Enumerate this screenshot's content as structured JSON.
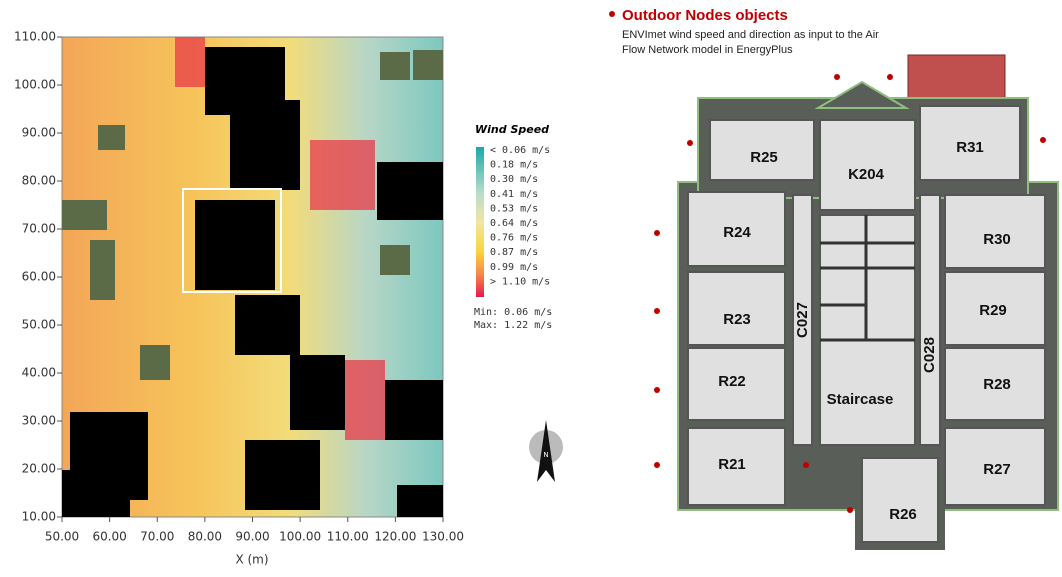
{
  "map": {
    "y_ticks": [
      "110.00",
      "100.00",
      "90.00",
      "80.00",
      "70.00",
      "60.00",
      "50.00",
      "40.00",
      "30.00",
      "20.00",
      "10.00"
    ],
    "x_ticks": [
      "50.00",
      "60.00",
      "70.00",
      "80.00",
      "90.00",
      "100.00",
      "110.00",
      "120.00",
      "130.00"
    ],
    "x_label": "X (m)"
  },
  "legend": {
    "title": "Wind Speed",
    "labels": [
      "< 0.06 m/s",
      "0.18 m/s",
      "0.30 m/s",
      "0.41 m/s",
      "0.53 m/s",
      "0.64 m/s",
      "0.76 m/s",
      "0.87 m/s",
      "0.99 m/s",
      "> 1.10 m/s"
    ],
    "min": "Min: 0.06 m/s",
    "max": "Max: 1.22 m/s"
  },
  "north": "N",
  "plan": {
    "title": "Outdoor Nodes objects",
    "description": [
      "ENVImet  wind speed and direction as input to the Air",
      "Flow Network model in EnergyPlus"
    ],
    "rooms": [
      "R25",
      "K204",
      "R31",
      "R24",
      "R30",
      "R23",
      "R29",
      "R22",
      "R28",
      "R21",
      "R27",
      "R26",
      "Staircase",
      "C027",
      "C028"
    ]
  }
}
